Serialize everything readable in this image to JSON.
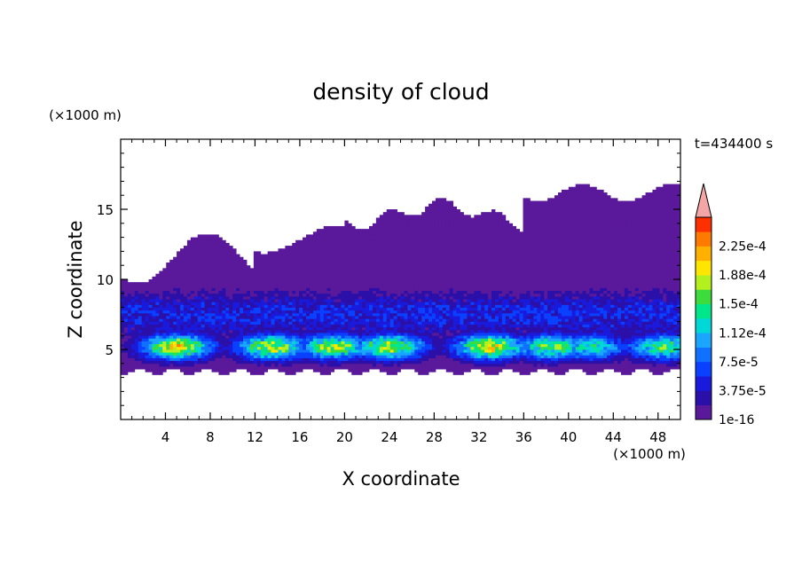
{
  "chart_data": {
    "type": "heatmap",
    "title": "density of cloud",
    "xlabel": "X coordinate",
    "ylabel": "Z coordinate",
    "x_unit": "(×1000 m)",
    "y_unit": "(×1000 m)",
    "time_label": "t=434400 s",
    "xlim": [
      0,
      50
    ],
    "ylim": [
      0,
      20
    ],
    "x_ticks": [
      4,
      8,
      12,
      16,
      20,
      24,
      28,
      32,
      36,
      40,
      44,
      48
    ],
    "y_ticks": [
      5,
      10,
      15
    ],
    "colorbar": {
      "labels": [
        "1e-16",
        "3.75e-5",
        "7.5e-5",
        "1.12e-4",
        "1.5e-4",
        "1.88e-4",
        "2.25e-4"
      ],
      "levels": [
        1e-16,
        1.875e-05,
        3.75e-05,
        5.625e-05,
        7.5e-05,
        9.375e-05,
        0.0001125,
        0.00013125,
        0.00015,
        0.00016875,
        0.0001875,
        0.00020625,
        0.000225,
        0.00024375
      ],
      "colors": [
        "#5a189a",
        "#2a10a8",
        "#1a1adc",
        "#0a40ff",
        "#1070ff",
        "#1aa6ff",
        "#00d8d8",
        "#00e68a",
        "#3ddc3d",
        "#b4f01e",
        "#ffe600",
        "#ffb000",
        "#ff7a00",
        "#ff3000"
      ],
      "overflow_color": "#f4a6a6",
      "extend": "max"
    },
    "field_description": "cloud density filling z ≈ 3.3–17 km; cloud base layer near z ≈ 4–6 km with peak density ≈ 1.9e-4",
    "grid": false
  }
}
